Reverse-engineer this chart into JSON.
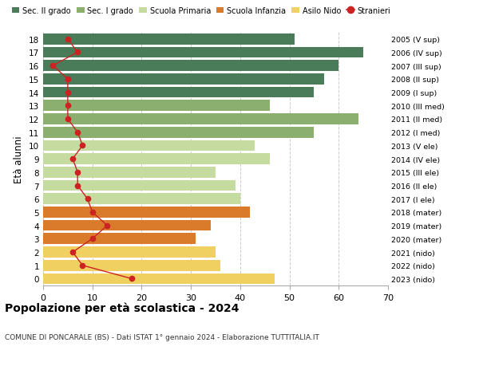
{
  "ages": [
    18,
    17,
    16,
    15,
    14,
    13,
    12,
    11,
    10,
    9,
    8,
    7,
    6,
    5,
    4,
    3,
    2,
    1,
    0
  ],
  "right_labels": [
    "2005 (V sup)",
    "2006 (IV sup)",
    "2007 (III sup)",
    "2008 (II sup)",
    "2009 (I sup)",
    "2010 (III med)",
    "2011 (II med)",
    "2012 (I med)",
    "2013 (V ele)",
    "2014 (IV ele)",
    "2015 (III ele)",
    "2016 (II ele)",
    "2017 (I ele)",
    "2018 (mater)",
    "2019 (mater)",
    "2020 (mater)",
    "2021 (nido)",
    "2022 (nido)",
    "2023 (nido)"
  ],
  "bar_values": [
    51,
    65,
    60,
    57,
    55,
    46,
    64,
    55,
    43,
    46,
    35,
    39,
    40,
    42,
    34,
    31,
    35,
    36,
    47
  ],
  "stranieri": [
    5,
    7,
    2,
    5,
    5,
    5,
    5,
    7,
    8,
    6,
    7,
    7,
    9,
    10,
    13,
    10,
    6,
    8,
    18
  ],
  "bar_colors": [
    "#4a7c59",
    "#4a7c59",
    "#4a7c59",
    "#4a7c59",
    "#4a7c59",
    "#8aaf6e",
    "#8aaf6e",
    "#8aaf6e",
    "#c5dba0",
    "#c5dba0",
    "#c5dba0",
    "#c5dba0",
    "#c5dba0",
    "#d97b2a",
    "#d97b2a",
    "#d97b2a",
    "#f0d060",
    "#f0d060",
    "#f0d060"
  ],
  "legend_labels": [
    "Sec. II grado",
    "Sec. I grado",
    "Scuola Primaria",
    "Scuola Infanzia",
    "Asilo Nido",
    "Stranieri"
  ],
  "legend_colors": [
    "#4a7c59",
    "#8aaf6e",
    "#c5dba0",
    "#d97b2a",
    "#f0d060",
    "#cc2222"
  ],
  "ylabel": "Età alunni",
  "title": "Popolazione per età scolastica - 2024",
  "subtitle": "COMUNE DI PONCARALE (BS) - Dati ISTAT 1° gennaio 2024 - Elaborazione TUTTITALIA.IT",
  "xlim": [
    0,
    70
  ],
  "stranieri_color": "#cc2222",
  "grid_color": "#cccccc"
}
